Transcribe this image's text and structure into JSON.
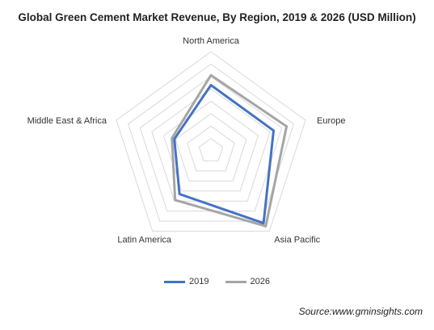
{
  "chart_data": {
    "type": "radar",
    "title": "Global Green Cement Market Revenue, By Region, 2019 & 2026 (USD Million)",
    "categories": [
      "North America",
      "Europe",
      "Asia Pacific",
      "Latin America",
      "Middle East & Africa"
    ],
    "rings": 8,
    "series": [
      {
        "name": "2019",
        "color": "#4472c4",
        "values": [
          5.3,
          5.3,
          7.2,
          4.3,
          3.1
        ]
      },
      {
        "name": "2026",
        "color": "#a5a5a5",
        "values": [
          6.1,
          6.4,
          7.5,
          4.9,
          3.3
        ]
      }
    ],
    "legend_position": "bottom",
    "source": "Source:www.gminsights.com"
  }
}
